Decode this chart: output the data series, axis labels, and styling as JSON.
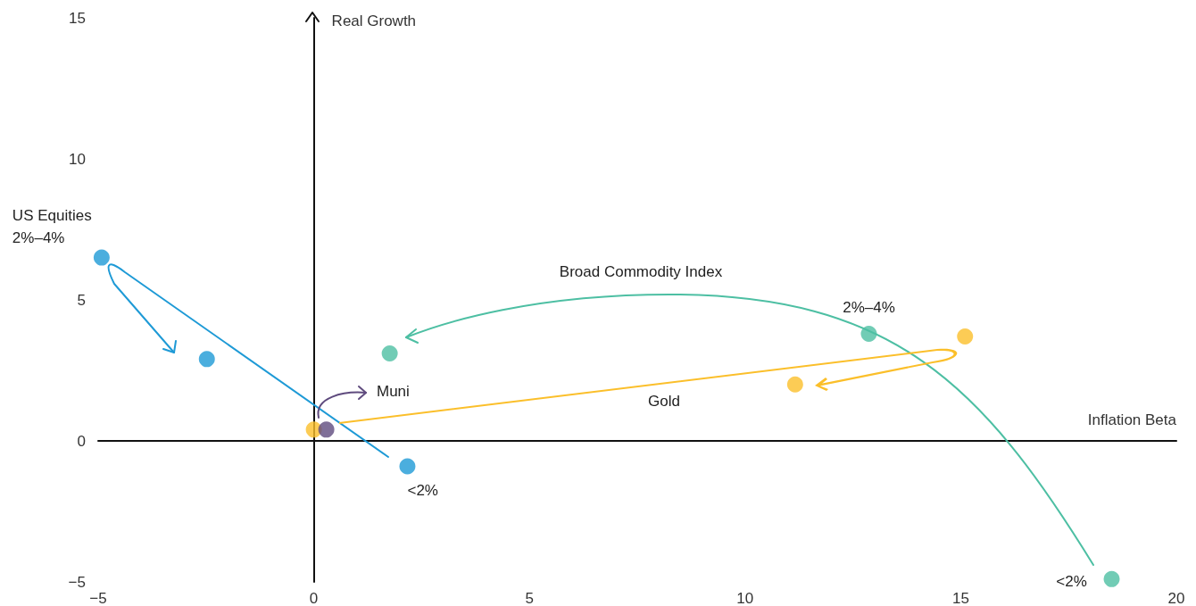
{
  "chart_data": {
    "type": "scatter",
    "xlabel": "Inflation Beta",
    "ylabel": "Real Growth",
    "xlim": [
      -5,
      20
    ],
    "ylim": [
      -5,
      15
    ],
    "xticks": [
      -5,
      0,
      5,
      10,
      15,
      20
    ],
    "yticks": [
      -5,
      0,
      5,
      10,
      15
    ],
    "marker": "circle",
    "series": [
      {
        "color": "#1e9ad6",
        "x": [
          -4.92,
          -2.48,
          2.17
        ],
        "values": [
          6.5,
          2.9,
          -0.9
        ]
      },
      {
        "color": "#4dbfa3",
        "x": [
          18.5,
          12.87,
          1.76
        ],
        "values": [
          -4.9,
          3.8,
          3.1
        ]
      },
      {
        "color": "#fbbf2a",
        "x": [
          0,
          15.1,
          11.16
        ],
        "values": [
          0.4,
          3.7,
          2.0
        ]
      },
      {
        "color": "#5f4b7e",
        "x": [
          0.29
        ],
        "values": [
          0.4
        ]
      }
    ],
    "annotations": [
      {
        "text": "US Equities",
        "x": -4.92,
        "y": 6.5
      },
      {
        "text": "2%–4%",
        "x": -4.92,
        "y": 6.5
      },
      {
        "text": "<2%",
        "x": 2.17,
        "y": -0.9
      },
      "Broad Commodity Index",
      {
        "text": "2%–4%",
        "x": 12.87,
        "y": 3.8
      },
      {
        "text": "<2%",
        "x": 18.5,
        "y": -4.9
      },
      "Gold",
      "Muni"
    ]
  }
}
